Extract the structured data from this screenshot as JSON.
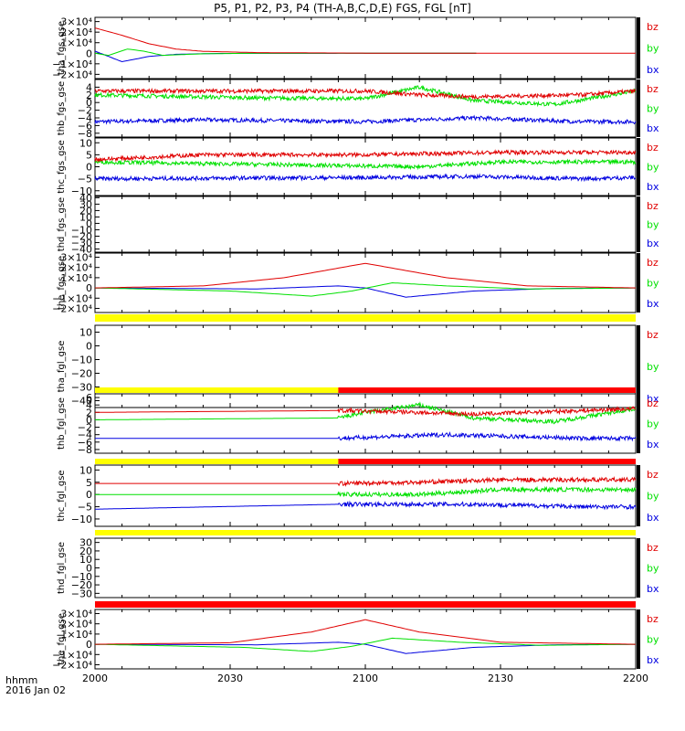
{
  "title": "P5, P1, P2, P3, P4 (TH-A,B,C,D,E) FGS, FGL [nT]",
  "footer": {
    "line1": "hhmm",
    "line2": "2016 Jan 02"
  },
  "colors": {
    "bz": "#e00000",
    "by": "#00e000",
    "bx": "#0000e0",
    "bar_yellow": "#ffff00",
    "bar_red": "#ff0000"
  },
  "chart_data": {
    "type": "line",
    "x_ticks": [
      "2000",
      "2030",
      "2100",
      "2130",
      "2200"
    ],
    "x_range": [
      "2000",
      "2200"
    ],
    "series_names": [
      "bz",
      "by",
      "bx"
    ],
    "panels": [
      {
        "ylabel": "tha_fgs_gse",
        "ylim": [
          -24000,
          34000
        ],
        "ticks": [
          {
            "v": 30000,
            "l": "3×10⁴"
          },
          {
            "v": 20000,
            "l": "2×10⁴"
          },
          {
            "v": 10000,
            "l": "1×10⁴"
          },
          {
            "v": 0,
            "l": "0"
          },
          {
            "v": -10000,
            "l": "−1×10⁴"
          },
          {
            "v": -20000,
            "l": "−2×10⁴"
          }
        ],
        "start": "2000",
        "end": "2200",
        "bz": [
          [
            0,
            24000
          ],
          [
            10,
            17000
          ],
          [
            20,
            9000
          ],
          [
            30,
            4000
          ],
          [
            40,
            1800
          ],
          [
            60,
            600
          ],
          [
            100,
            100
          ],
          [
            200,
            50
          ]
        ],
        "by": [
          [
            0,
            0
          ],
          [
            5,
            -2000
          ],
          [
            12,
            4000
          ],
          [
            18,
            2000
          ],
          [
            25,
            -2000
          ],
          [
            40,
            -500
          ],
          [
            60,
            0
          ],
          [
            141,
            0
          ]
        ],
        "bx": [
          [
            0,
            2000
          ],
          [
            10,
            -8000
          ],
          [
            20,
            -3000
          ],
          [
            30,
            -1000
          ],
          [
            45,
            -200
          ],
          [
            60,
            -100
          ],
          [
            141,
            0
          ]
        ]
      },
      {
        "ylabel": "thb_fgs_gse",
        "ylim": [
          -9,
          6
        ],
        "ticks": [
          {
            "v": 4,
            "l": "4"
          },
          {
            "v": 2,
            "l": "2"
          },
          {
            "v": 0,
            "l": "0"
          },
          {
            "v": -2,
            "l": "−2"
          },
          {
            "v": -4,
            "l": "−4"
          },
          {
            "v": -6,
            "l": "−6"
          },
          {
            "v": -8,
            "l": "−8"
          }
        ],
        "start": "2000",
        "end": "2200",
        "noise": true,
        "bz": [
          [
            0,
            3
          ],
          [
            100,
            3
          ],
          [
            120,
            2
          ],
          [
            140,
            1.5
          ],
          [
            180,
            2
          ],
          [
            200,
            3
          ]
        ],
        "by": [
          [
            0,
            2
          ],
          [
            60,
            1.2
          ],
          [
            100,
            1
          ],
          [
            120,
            4
          ],
          [
            140,
            0.5
          ],
          [
            170,
            -0.5
          ],
          [
            200,
            3
          ]
        ],
        "bx": [
          [
            0,
            -5
          ],
          [
            40,
            -4.5
          ],
          [
            100,
            -5
          ],
          [
            140,
            -4
          ],
          [
            180,
            -5
          ],
          [
            200,
            -5
          ]
        ]
      },
      {
        "ylabel": "thc_fgs_gse",
        "ylim": [
          -12,
          12
        ],
        "ticks": [
          {
            "v": 10,
            "l": "10"
          },
          {
            "v": 5,
            "l": "5"
          },
          {
            "v": 0,
            "l": "0"
          },
          {
            "v": -5,
            "l": "−5"
          },
          {
            "v": -10,
            "l": "−10"
          }
        ],
        "start": "2000",
        "end": "2200",
        "noise": true,
        "bz": [
          [
            0,
            3
          ],
          [
            40,
            5
          ],
          [
            100,
            5
          ],
          [
            150,
            6
          ],
          [
            200,
            6
          ]
        ],
        "by": [
          [
            0,
            2
          ],
          [
            60,
            1
          ],
          [
            120,
            0
          ],
          [
            150,
            2
          ],
          [
            200,
            2
          ]
        ],
        "bx": [
          [
            0,
            -5
          ],
          [
            100,
            -4.5
          ],
          [
            140,
            -4
          ],
          [
            180,
            -5
          ],
          [
            200,
            -4.5
          ]
        ]
      },
      {
        "ylabel": "thd_fgs_gse",
        "ylim": [
          -45,
          42
        ],
        "ticks": [
          {
            "v": 40,
            "l": "40"
          },
          {
            "v": 30,
            "l": "30"
          },
          {
            "v": 20,
            "l": "20"
          },
          {
            "v": 10,
            "l": "10"
          },
          {
            "v": 0,
            "l": "0"
          },
          {
            "v": -10,
            "l": "−10"
          },
          {
            "v": -20,
            "l": "−20"
          },
          {
            "v": -30,
            "l": "−30"
          },
          {
            "v": -40,
            "l": "−40"
          }
        ],
        "empty": true
      },
      {
        "ylabel": "the_fgs_gse",
        "ylim": [
          -24000,
          34000
        ],
        "ticks": [
          {
            "v": 30000,
            "l": "3×10⁴"
          },
          {
            "v": 20000,
            "l": "2×10⁴"
          },
          {
            "v": 10000,
            "l": "1×10⁴"
          },
          {
            "v": 0,
            "l": "0"
          },
          {
            "v": -10000,
            "l": "−1×10⁴"
          },
          {
            "v": -20000,
            "l": "−2×10⁴"
          }
        ],
        "start": "2000",
        "end": "2200",
        "bz": [
          [
            0,
            0
          ],
          [
            40,
            2000
          ],
          [
            70,
            10000
          ],
          [
            100,
            24000
          ],
          [
            130,
            10000
          ],
          [
            160,
            2000
          ],
          [
            200,
            0
          ]
        ],
        "by": [
          [
            0,
            0
          ],
          [
            50,
            -3000
          ],
          [
            80,
            -8000
          ],
          [
            95,
            -3000
          ],
          [
            110,
            5000
          ],
          [
            130,
            2000
          ],
          [
            160,
            -1000
          ],
          [
            200,
            0
          ]
        ],
        "bx": [
          [
            0,
            0
          ],
          [
            60,
            -1000
          ],
          [
            90,
            2000
          ],
          [
            100,
            0
          ],
          [
            115,
            -9000
          ],
          [
            140,
            -3000
          ],
          [
            170,
            -500
          ],
          [
            200,
            0
          ]
        ]
      },
      {
        "ylabel": "tha_fgl_gse",
        "ylim": [
          -45,
          15
        ],
        "ticks": [
          {
            "v": 10,
            "l": "10"
          },
          {
            "v": 0,
            "l": "0"
          },
          {
            "v": -10,
            "l": "−10"
          },
          {
            "v": -20,
            "l": "−20"
          },
          {
            "v": -30,
            "l": "−30"
          },
          {
            "v": -40,
            "l": "−40"
          }
        ],
        "empty": true,
        "bar": [
          {
            "from": 0,
            "to": 200,
            "color": "yellow"
          }
        ]
      },
      {
        "ylabel": "thb_fgl_gse",
        "ylim": [
          -9,
          7
        ],
        "ticks": [
          {
            "v": 6,
            "l": "6"
          },
          {
            "v": 4,
            "l": "4"
          },
          {
            "v": 2,
            "l": "2"
          },
          {
            "v": 0,
            "l": "0"
          },
          {
            "v": -2,
            "l": "−2"
          },
          {
            "v": -4,
            "l": "−4"
          },
          {
            "v": -6,
            "l": "−6"
          },
          {
            "v": -8,
            "l": "−8"
          }
        ],
        "start": "2000",
        "end": "2200",
        "noise_from": 90,
        "bz": [
          [
            0,
            2
          ],
          [
            90,
            2.5
          ],
          [
            120,
            2
          ],
          [
            140,
            1.5
          ],
          [
            180,
            2.5
          ],
          [
            200,
            3
          ]
        ],
        "by": [
          [
            0,
            0
          ],
          [
            90,
            0.5
          ],
          [
            100,
            2
          ],
          [
            120,
            4
          ],
          [
            140,
            0.5
          ],
          [
            170,
            -0.5
          ],
          [
            200,
            3
          ]
        ],
        "bx": [
          [
            0,
            -5
          ],
          [
            90,
            -5
          ],
          [
            130,
            -4
          ],
          [
            180,
            -5
          ],
          [
            200,
            -5
          ]
        ],
        "bar": [
          {
            "from": 0,
            "to": 90,
            "color": "yellow"
          },
          {
            "from": 90,
            "to": 200,
            "color": "red"
          }
        ]
      },
      {
        "ylabel": "thc_fgl_gse",
        "ylim": [
          -13,
          12
        ],
        "ticks": [
          {
            "v": 10,
            "l": "10"
          },
          {
            "v": 5,
            "l": "5"
          },
          {
            "v": 0,
            "l": "0"
          },
          {
            "v": -5,
            "l": "−5"
          },
          {
            "v": -10,
            "l": "−10"
          }
        ],
        "start": "2000",
        "end": "2200",
        "noise_from": 90,
        "bz": [
          [
            0,
            4.5
          ],
          [
            90,
            4.5
          ],
          [
            120,
            5
          ],
          [
            150,
            6
          ],
          [
            200,
            6
          ]
        ],
        "by": [
          [
            0,
            0
          ],
          [
            90,
            0
          ],
          [
            120,
            0
          ],
          [
            150,
            2
          ],
          [
            200,
            2
          ]
        ],
        "bx": [
          [
            0,
            -6
          ],
          [
            90,
            -4
          ],
          [
            140,
            -4
          ],
          [
            180,
            -5
          ],
          [
            200,
            -5
          ]
        ],
        "bar": [
          {
            "from": 0,
            "to": 90,
            "color": "yellow"
          },
          {
            "from": 90,
            "to": 200,
            "color": "red"
          }
        ]
      },
      {
        "ylabel": "thd_fgl_gse",
        "ylim": [
          -35,
          35
        ],
        "ticks": [
          {
            "v": 30,
            "l": "30"
          },
          {
            "v": 20,
            "l": "20"
          },
          {
            "v": 10,
            "l": "10"
          },
          {
            "v": 0,
            "l": "0"
          },
          {
            "v": -10,
            "l": "−10"
          },
          {
            "v": -20,
            "l": "−20"
          },
          {
            "v": -30,
            "l": "−30"
          }
        ],
        "empty": true,
        "bar": [
          {
            "from": 0,
            "to": 200,
            "color": "yellow"
          }
        ]
      },
      {
        "ylabel": "the_fgl_gse",
        "ylim": [
          -24000,
          34000
        ],
        "ticks": [
          {
            "v": 30000,
            "l": "3×10⁴"
          },
          {
            "v": 20000,
            "l": "2×10⁴"
          },
          {
            "v": 10000,
            "l": "1×10⁴"
          },
          {
            "v": 0,
            "l": "0"
          },
          {
            "v": -10000,
            "l": "−1×10⁴"
          },
          {
            "v": -20000,
            "l": "−2×10⁴"
          }
        ],
        "start": "2000",
        "end": "2200",
        "bz": [
          [
            0,
            0
          ],
          [
            50,
            1500
          ],
          [
            80,
            12000
          ],
          [
            100,
            24000
          ],
          [
            120,
            12000
          ],
          [
            150,
            2000
          ],
          [
            200,
            0
          ]
        ],
        "by": [
          [
            0,
            0
          ],
          [
            55,
            -3000
          ],
          [
            80,
            -7000
          ],
          [
            95,
            -2000
          ],
          [
            110,
            6000
          ],
          [
            135,
            2000
          ],
          [
            165,
            -1000
          ],
          [
            200,
            0
          ]
        ],
        "bx": [
          [
            0,
            0
          ],
          [
            60,
            -500
          ],
          [
            90,
            2000
          ],
          [
            100,
            0
          ],
          [
            115,
            -9000
          ],
          [
            140,
            -3000
          ],
          [
            170,
            -500
          ],
          [
            200,
            0
          ]
        ],
        "bar": [
          {
            "from": 0,
            "to": 200,
            "color": "red"
          }
        ]
      }
    ]
  }
}
